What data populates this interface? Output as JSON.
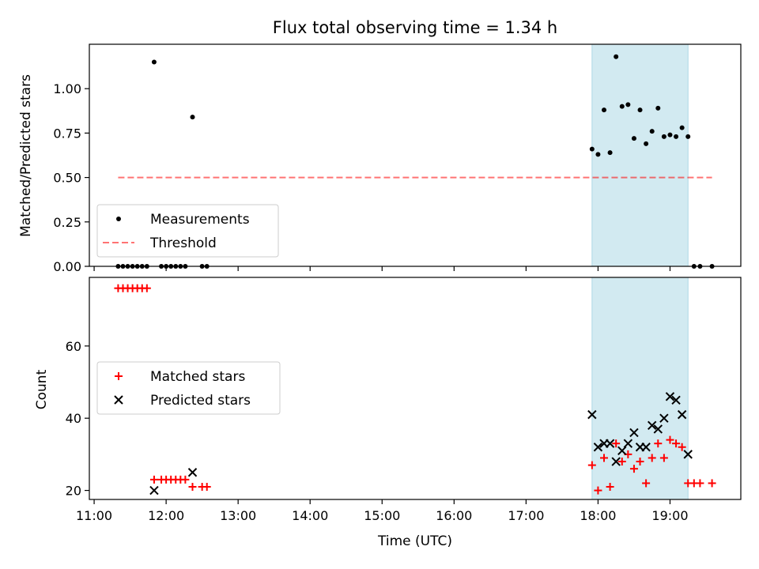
{
  "title": "Flux total observing time = 1.34 h",
  "xlabel": "Time (UTC)",
  "x_ticks": [
    "11:00",
    "12:00",
    "13:00",
    "14:00",
    "15:00",
    "16:00",
    "17:00",
    "18:00",
    "19:00"
  ],
  "colors": {
    "highlight": "#add8e6",
    "threshold": "#ff0000",
    "matched": "#ff0000",
    "predicted": "#000000",
    "measurement": "#000000"
  },
  "chart_data": [
    {
      "type": "scatter",
      "ylabel": "Matched/Predicted stars",
      "xlim": [
        "10:56",
        "19:59"
      ],
      "ylim": [
        0,
        1.25
      ],
      "y_ticks": [
        0.0,
        0.25,
        0.5,
        0.75,
        1.0
      ],
      "y_tick_labels": [
        "0.00",
        "0.25",
        "0.50",
        "0.75",
        "1.00"
      ],
      "highlight_span": [
        "17:55",
        "19:15"
      ],
      "legend": {
        "placement": "lower-left",
        "entries": [
          "Measurements",
          "Threshold"
        ]
      },
      "threshold": {
        "name": "Threshold",
        "y": 0.5,
        "x_range": [
          "11:20",
          "19:35"
        ]
      },
      "series": [
        {
          "name": "Measurements",
          "points": [
            [
              "11:20",
              0
            ],
            [
              "11:24",
              0
            ],
            [
              "11:28",
              0
            ],
            [
              "11:32",
              0
            ],
            [
              "11:36",
              0
            ],
            [
              "11:40",
              0
            ],
            [
              "11:44",
              0
            ],
            [
              "11:50",
              1.15
            ],
            [
              "11:56",
              0
            ],
            [
              "12:00",
              0
            ],
            [
              "12:04",
              0
            ],
            [
              "12:08",
              0
            ],
            [
              "12:12",
              0
            ],
            [
              "12:16",
              0
            ],
            [
              "12:22",
              0.84
            ],
            [
              "12:30",
              0
            ],
            [
              "12:34",
              0
            ],
            [
              "17:55",
              0.66
            ],
            [
              "18:00",
              0.63
            ],
            [
              "18:05",
              0.88
            ],
            [
              "18:10",
              0.64
            ],
            [
              "18:15",
              1.18
            ],
            [
              "18:20",
              0.9
            ],
            [
              "18:25",
              0.91
            ],
            [
              "18:30",
              0.72
            ],
            [
              "18:35",
              0.88
            ],
            [
              "18:40",
              0.69
            ],
            [
              "18:45",
              0.76
            ],
            [
              "18:50",
              0.89
            ],
            [
              "18:55",
              0.73
            ],
            [
              "19:00",
              0.74
            ],
            [
              "19:05",
              0.73
            ],
            [
              "19:10",
              0.78
            ],
            [
              "19:15",
              0.73
            ],
            [
              "19:20",
              0
            ],
            [
              "19:25",
              0
            ],
            [
              "19:35",
              0
            ]
          ]
        }
      ]
    },
    {
      "type": "scatter",
      "ylabel": "Count",
      "xlim": [
        "10:56",
        "19:59"
      ],
      "ylim": [
        17.5,
        79
      ],
      "y_ticks": [
        20,
        40,
        60
      ],
      "y_tick_labels": [
        "20",
        "40",
        "60"
      ],
      "highlight_span": [
        "17:55",
        "19:15"
      ],
      "legend": {
        "placement": "center-left",
        "entries": [
          "Matched stars",
          "Predicted stars"
        ]
      },
      "series": [
        {
          "name": "Matched stars",
          "marker": "plus",
          "points": [
            [
              "11:20",
              76
            ],
            [
              "11:24",
              76
            ],
            [
              "11:28",
              76
            ],
            [
              "11:32",
              76
            ],
            [
              "11:36",
              76
            ],
            [
              "11:40",
              76
            ],
            [
              "11:44",
              76
            ],
            [
              "11:50",
              23
            ],
            [
              "11:56",
              23
            ],
            [
              "12:00",
              23
            ],
            [
              "12:04",
              23
            ],
            [
              "12:08",
              23
            ],
            [
              "12:12",
              23
            ],
            [
              "12:16",
              23
            ],
            [
              "12:22",
              21
            ],
            [
              "12:30",
              21
            ],
            [
              "12:34",
              21
            ],
            [
              "17:55",
              27
            ],
            [
              "18:00",
              20
            ],
            [
              "18:05",
              29
            ],
            [
              "18:10",
              21
            ],
            [
              "18:15",
              33
            ],
            [
              "18:20",
              28
            ],
            [
              "18:25",
              30
            ],
            [
              "18:30",
              26
            ],
            [
              "18:35",
              28
            ],
            [
              "18:40",
              22
            ],
            [
              "18:45",
              29
            ],
            [
              "18:50",
              33
            ],
            [
              "18:55",
              29
            ],
            [
              "19:00",
              34
            ],
            [
              "19:05",
              33
            ],
            [
              "19:10",
              32
            ],
            [
              "19:15",
              22
            ],
            [
              "19:20",
              22
            ],
            [
              "19:25",
              22
            ],
            [
              "19:35",
              22
            ]
          ]
        },
        {
          "name": "Predicted stars",
          "marker": "x",
          "points": [
            [
              "11:50",
              20
            ],
            [
              "12:22",
              25
            ],
            [
              "17:55",
              41
            ],
            [
              "18:00",
              32
            ],
            [
              "18:05",
              33
            ],
            [
              "18:10",
              33
            ],
            [
              "18:15",
              28
            ],
            [
              "18:20",
              31
            ],
            [
              "18:25",
              33
            ],
            [
              "18:30",
              36
            ],
            [
              "18:35",
              32
            ],
            [
              "18:40",
              32
            ],
            [
              "18:45",
              38
            ],
            [
              "18:50",
              37
            ],
            [
              "18:55",
              40
            ],
            [
              "19:00",
              46
            ],
            [
              "19:05",
              45
            ],
            [
              "19:10",
              41
            ],
            [
              "19:15",
              30
            ]
          ]
        }
      ]
    }
  ]
}
